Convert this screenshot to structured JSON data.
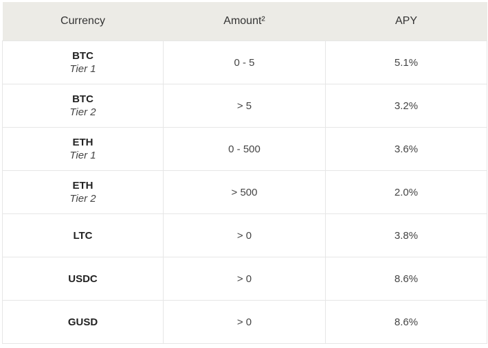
{
  "table": {
    "header": [
      "Currency",
      "Amount²",
      "APY"
    ],
    "rows": [
      {
        "currency": "BTC",
        "tier": "Tier 1",
        "amount": "0 - 5",
        "apy": "5.1%"
      },
      {
        "currency": "BTC",
        "tier": "Tier 2",
        "amount": "> 5",
        "apy": "3.2%"
      },
      {
        "currency": "ETH",
        "tier": "Tier 1",
        "amount": "0 - 500",
        "apy": "3.6%"
      },
      {
        "currency": "ETH",
        "tier": "Tier 2",
        "amount": "> 500",
        "apy": "2.0%"
      },
      {
        "currency": "LTC",
        "amount": "> 0",
        "apy": "3.8%"
      },
      {
        "currency": "USDC",
        "amount": "> 0",
        "apy": "8.6%"
      },
      {
        "currency": "GUSD",
        "amount": "> 0",
        "apy": "8.6%"
      }
    ]
  }
}
